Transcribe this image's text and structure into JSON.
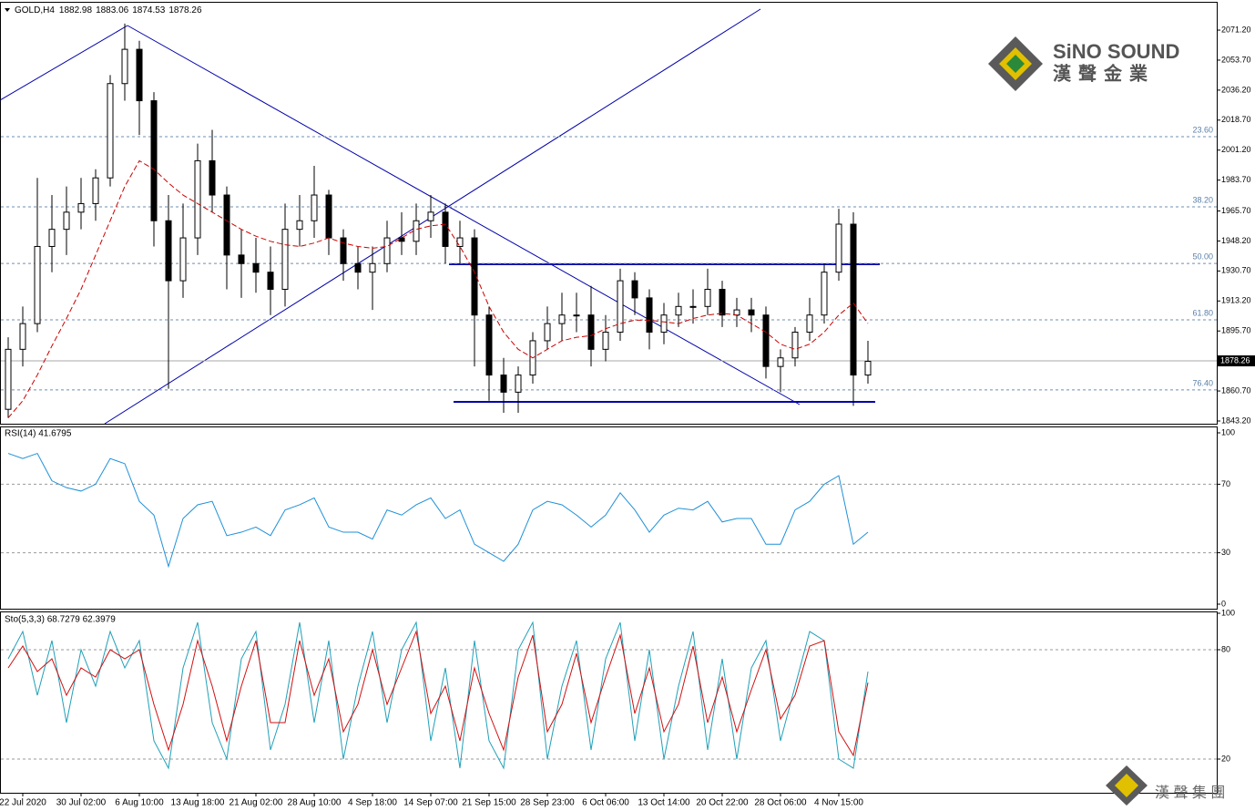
{
  "chart_data": [
    {
      "type": "candlestick",
      "symbol": "GOLD,H4",
      "header_ohlc": [
        1882.98,
        1883.06,
        1874.53,
        1878.26
      ],
      "categories": [
        null,
        "22 Jul 2020",
        null,
        null,
        null,
        "30 Jul 02:00",
        null,
        null,
        null,
        "6 Aug 10:00",
        null,
        null,
        null,
        "13 Aug 18:00",
        null,
        null,
        null,
        "21 Aug 02:00",
        null,
        null,
        null,
        "28 Aug 10:00",
        null,
        null,
        null,
        "4 Sep 18:00",
        null,
        null,
        null,
        "14 Sep 07:00",
        null,
        null,
        null,
        "21 Sep 15:00",
        null,
        null,
        null,
        "28 Sep 23:00",
        null,
        null,
        null,
        "6 Oct 06:00",
        null,
        null,
        null,
        "13 Oct 14:00",
        null,
        null,
        null,
        "20 Oct 22:00",
        null,
        null,
        null,
        "28 Oct 06:00",
        null,
        null,
        null,
        "4 Nov 15:00",
        null,
        null
      ],
      "open": [
        1850,
        1885,
        1900,
        1945,
        1955,
        1965,
        1970,
        1985,
        2040,
        2060,
        2030,
        1960,
        1925,
        1950,
        1995,
        1975,
        1940,
        1935,
        1930,
        1920,
        1955,
        1960,
        1975,
        1950,
        1935,
        1930,
        1935,
        1950,
        1948,
        1960,
        1965,
        1945,
        1950,
        1905,
        1870,
        1860,
        1870,
        1890,
        1900,
        1905,
        1905,
        1885,
        1895,
        1925,
        1915,
        1895,
        1905,
        1910,
        1910,
        1920,
        1905,
        1908,
        1905,
        1875,
        1880,
        1895,
        1905,
        1930,
        1958,
        1870
      ],
      "high": [
        1892,
        1910,
        1985,
        1975,
        1980,
        1985,
        1990,
        2045,
        2075,
        2065,
        2035,
        1975,
        1970,
        2005,
        2013,
        1980,
        1955,
        1950,
        1945,
        1970,
        1975,
        1992,
        1978,
        1955,
        1945,
        1945,
        1960,
        1965,
        1970,
        1975,
        1970,
        1960,
        1955,
        1910,
        1880,
        1875,
        1895,
        1910,
        1918,
        1918,
        1922,
        1905,
        1932,
        1930,
        1920,
        1912,
        1918,
        1920,
        1932,
        1925,
        1915,
        1915,
        1910,
        1885,
        1898,
        1915,
        1935,
        1967,
        1965,
        1890
      ],
      "low": [
        1845,
        1875,
        1895,
        1930,
        1940,
        1955,
        1960,
        1980,
        2030,
        2010,
        1945,
        1862,
        1915,
        1940,
        1965,
        1920,
        1915,
        1918,
        1905,
        1910,
        1945,
        1950,
        1940,
        1925,
        1920,
        1908,
        1930,
        1940,
        1940,
        1950,
        1935,
        1935,
        1875,
        1855,
        1848,
        1848,
        1865,
        1885,
        1890,
        1895,
        1875,
        1878,
        1890,
        1905,
        1885,
        1888,
        1898,
        1900,
        1905,
        1898,
        1898,
        1895,
        1868,
        1860,
        1875,
        1890,
        1900,
        1925,
        1852,
        1865
      ],
      "close": [
        1885,
        1900,
        1945,
        1955,
        1965,
        1970,
        1985,
        2040,
        2060,
        2030,
        1960,
        1925,
        1950,
        1995,
        1975,
        1940,
        1935,
        1930,
        1920,
        1955,
        1960,
        1975,
        1950,
        1935,
        1930,
        1935,
        1950,
        1948,
        1960,
        1965,
        1945,
        1950,
        1905,
        1870,
        1860,
        1870,
        1890,
        1900,
        1905,
        1905,
        1885,
        1895,
        1925,
        1915,
        1895,
        1905,
        1910,
        1910,
        1920,
        1905,
        1908,
        1905,
        1875,
        1880,
        1895,
        1905,
        1930,
        1958,
        1870,
        1878
      ],
      "moving_average": {
        "color": "#cc0000",
        "values": [
          1845,
          1855,
          1870,
          1887,
          1903,
          1920,
          1940,
          1960,
          1980,
          1995,
          1990,
          1982,
          1975,
          1970,
          1965,
          1960,
          1955,
          1951,
          1948,
          1946,
          1945,
          1947,
          1950,
          1947,
          1945,
          1944,
          1945,
          1950,
          1955,
          1957,
          1958,
          1945,
          1930,
          1910,
          1895,
          1885,
          1880,
          1885,
          1890,
          1892,
          1893,
          1897,
          1900,
          1902,
          1902,
          1901,
          1900,
          1903,
          1905,
          1906,
          1905,
          1900,
          1895,
          1888,
          1885,
          1888,
          1895,
          1905,
          1912,
          1900
        ]
      },
      "ylim": [
        1841.6,
        2087.7
      ],
      "yticks": [
        {
          "value": 2071.2,
          "label": "2071.20"
        },
        {
          "value": 2053.7,
          "label": "2053.70"
        },
        {
          "value": 2036.2,
          "label": "2036.20"
        },
        {
          "value": 2018.7,
          "label": "2018.70"
        },
        {
          "value": 2001.2,
          "label": "2001.20"
        },
        {
          "value": 1983.7,
          "label": "1983.70"
        },
        {
          "value": 1965.7,
          "label": "1965.70"
        },
        {
          "value": 1948.2,
          "label": "1948.20"
        },
        {
          "value": 1930.7,
          "label": "1930.70"
        },
        {
          "value": 1913.2,
          "label": "1913.20"
        },
        {
          "value": 1895.7,
          "label": "1895.70"
        },
        {
          "value": 1860.7,
          "label": "1860.70"
        },
        {
          "value": 1843.2,
          "label": "1843.20"
        }
      ],
      "fib_levels": [
        {
          "value": 2009.0,
          "label": "23.60"
        },
        {
          "value": 1968.1,
          "label": "38.20"
        },
        {
          "value": 1935.1,
          "label": "50.00"
        },
        {
          "value": 1902.2,
          "label": "61.80"
        },
        {
          "value": 1861.3,
          "label": "76.40"
        }
      ],
      "brand": {
        "name": "SiNO SOUND",
        "chinese": "漢聲金業",
        "footer": "漢 聲 集 團"
      }
    },
    {
      "type": "line",
      "title": "RSI(14) 41.6795",
      "ylim": [
        0,
        100
      ],
      "yticks": [
        100,
        70,
        30,
        0
      ],
      "series": [
        {
          "color": "#1e90d8",
          "values": [
            88,
            85,
            88,
            72,
            68,
            66,
            70,
            85,
            82,
            60,
            52,
            22,
            50,
            58,
            60,
            40,
            42,
            45,
            40,
            55,
            58,
            62,
            45,
            42,
            42,
            38,
            55,
            52,
            58,
            62,
            50,
            55,
            35,
            30,
            25,
            35,
            55,
            60,
            58,
            52,
            45,
            52,
            65,
            55,
            42,
            52,
            56,
            55,
            60,
            48,
            50,
            50,
            35,
            35,
            55,
            60,
            70,
            75,
            35,
            42
          ]
        }
      ]
    },
    {
      "type": "line",
      "title": "Sto(5,3,3) 68.7279 62.3979",
      "ylim": [
        0,
        100
      ],
      "yticks": [
        100,
        80,
        20
      ],
      "series": [
        {
          "color": "#20a0b8",
          "values": [
            75,
            90,
            55,
            85,
            40,
            80,
            60,
            90,
            70,
            85,
            30,
            15,
            70,
            95,
            40,
            20,
            75,
            90,
            25,
            50,
            95,
            40,
            85,
            20,
            60,
            90,
            40,
            80,
            95,
            30,
            70,
            15,
            85,
            30,
            15,
            80,
            95,
            20,
            60,
            85,
            25,
            75,
            95,
            30,
            80,
            20,
            60,
            90,
            25,
            75,
            20,
            70,
            85,
            30,
            60,
            90,
            85,
            20,
            15,
            68
          ]
        },
        {
          "color": "#d01010",
          "values": [
            70,
            82,
            68,
            75,
            55,
            70,
            65,
            80,
            75,
            80,
            50,
            25,
            50,
            85,
            60,
            30,
            60,
            85,
            40,
            40,
            85,
            55,
            75,
            35,
            50,
            80,
            50,
            70,
            90,
            45,
            60,
            30,
            70,
            45,
            25,
            65,
            88,
            35,
            50,
            78,
            40,
            65,
            88,
            45,
            70,
            35,
            50,
            82,
            40,
            65,
            35,
            58,
            80,
            42,
            55,
            82,
            85,
            35,
            22,
            62
          ]
        }
      ]
    }
  ]
}
